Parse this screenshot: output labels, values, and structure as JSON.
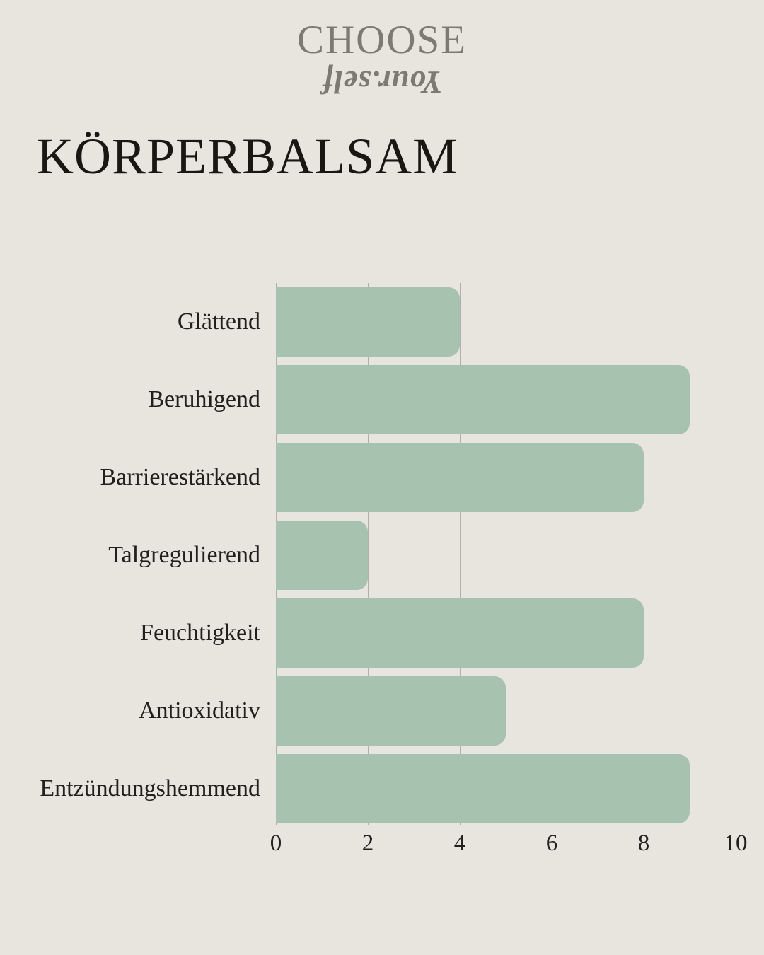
{
  "page": {
    "background": "#e8e5de"
  },
  "logo": {
    "line1": "CHOOSE",
    "line2": "Your.self",
    "color": "#7d7a74"
  },
  "title": "KÖRPERBALSAM",
  "chart_data": {
    "type": "bar",
    "orientation": "horizontal",
    "title": "KÖRPERBALSAM",
    "categories": [
      "Glättend",
      "Beruhigend",
      "Barrierestärkend",
      "Talgregulierend",
      "Feuchtigkeit",
      "Antioxidativ",
      "Entzündungshemmend"
    ],
    "values": [
      4,
      9,
      8,
      2,
      8,
      5,
      9
    ],
    "xlim": [
      0,
      10
    ],
    "xticks": [
      0,
      2,
      4,
      6,
      8,
      10
    ],
    "grid": true,
    "legend": false,
    "bar_color": "#a7c2ae",
    "gridline_color": "#b3b0a7",
    "text_color": "#21201c"
  }
}
